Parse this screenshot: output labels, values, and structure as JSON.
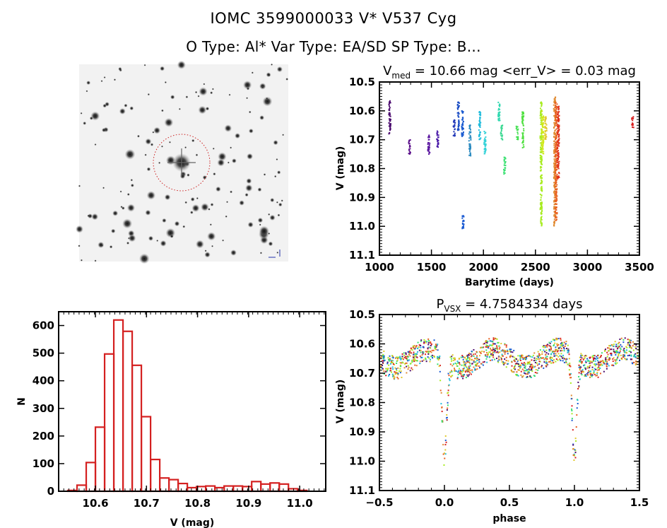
{
  "header": {
    "line1": "IOMC 3599000033    V* V537 Cyg",
    "line2": "O Type: Al*   Var Type: EA/SD   SP Type: B..."
  },
  "sky_image": {
    "description": "DSS finder chart star field",
    "target_marker": "red dotted circle around target star",
    "marker_color": "#cc2222"
  },
  "chart_data": [
    {
      "id": "lightcurve",
      "type": "scatter",
      "title_main": "V",
      "title_sub": "med",
      "title_rest": " = 10.66 mag <err_V> = 0.03 mag",
      "xlabel": "Barytime (days)",
      "ylabel": "V (mag)",
      "xlim": [
        1000,
        3500
      ],
      "ylim": [
        11.1,
        10.5
      ],
      "y_inverted": true,
      "xticks": [
        1000,
        1500,
        2000,
        2500,
        3000,
        3500
      ],
      "yticks": [
        10.5,
        10.6,
        10.7,
        10.8,
        10.9,
        11.0,
        11.1
      ],
      "ytick_labels": [
        "10.5",
        "10.6",
        "10.7",
        "10.8",
        "10.9",
        "11.0",
        "11.1"
      ],
      "color_scale": "time-ordered rainbow (purple → blue → cyan → green → yellow → orange → red)",
      "groups": [
        {
          "x": 1100,
          "ymin": 10.56,
          "ymax": 10.68,
          "color": "#4b0a6e"
        },
        {
          "x": 1290,
          "ymin": 10.7,
          "ymax": 10.75,
          "color": "#5a0e8a"
        },
        {
          "x": 1475,
          "ymin": 10.68,
          "ymax": 10.75,
          "color": "#5b17a0"
        },
        {
          "x": 1560,
          "ymin": 10.67,
          "ymax": 10.73,
          "color": "#4a1aa8"
        },
        {
          "x": 1720,
          "ymin": 10.63,
          "ymax": 10.69,
          "color": "#2238b8"
        },
        {
          "x": 1760,
          "ymin": 10.57,
          "ymax": 10.67,
          "color": "#1a4cc4"
        },
        {
          "x": 1800,
          "ymin": 10.6,
          "ymax": 10.69,
          "color": "#1b5bd0"
        },
        {
          "x": 1805,
          "ymin": 10.96,
          "ymax": 11.01,
          "color": "#1a5ad2"
        },
        {
          "x": 1870,
          "ymin": 10.65,
          "ymax": 10.76,
          "color": "#2a8ac0"
        },
        {
          "x": 1965,
          "ymin": 10.6,
          "ymax": 10.7,
          "color": "#22bcdc"
        },
        {
          "x": 2015,
          "ymin": 10.67,
          "ymax": 10.75,
          "color": "#35d2d8"
        },
        {
          "x": 2150,
          "ymin": 10.57,
          "ymax": 10.64,
          "color": "#30d8b0"
        },
        {
          "x": 2175,
          "ymin": 10.65,
          "ymax": 10.7,
          "color": "#38d890"
        },
        {
          "x": 2205,
          "ymin": 10.76,
          "ymax": 10.82,
          "color": "#38e070"
        },
        {
          "x": 2325,
          "ymin": 10.65,
          "ymax": 10.7,
          "color": "#44e052"
        },
        {
          "x": 2380,
          "ymin": 10.6,
          "ymax": 10.73,
          "color": "#50e040"
        },
        {
          "x": 2555,
          "ymin": 10.57,
          "ymax": 11.0,
          "color": "#a8ec20"
        },
        {
          "x": 2570,
          "ymin": 10.6,
          "ymax": 10.75,
          "color": "#d0e818"
        },
        {
          "x": 2600,
          "ymin": 10.62,
          "ymax": 10.7,
          "color": "#e0c828"
        },
        {
          "x": 2685,
          "ymin": 10.55,
          "ymax": 11.0,
          "color": "#e08a30"
        },
        {
          "x": 2700,
          "ymin": 10.57,
          "ymax": 10.98,
          "color": "#e86020"
        },
        {
          "x": 2720,
          "ymin": 10.58,
          "ymax": 10.84,
          "color": "#e03018"
        },
        {
          "x": 3435,
          "ymin": 10.62,
          "ymax": 10.66,
          "color": "#d82020"
        }
      ]
    },
    {
      "id": "histogram",
      "type": "bar",
      "title": "",
      "xlabel": "V (mag)",
      "ylabel": "N",
      "xlim": [
        10.528,
        11.051
      ],
      "ylim": [
        0,
        650
      ],
      "xticks": [
        10.6,
        10.7,
        10.8,
        10.9,
        11.0
      ],
      "xtick_labels": [
        "10.6",
        "10.7",
        "10.8",
        "10.9",
        "11.0"
      ],
      "yticks": [
        0,
        100,
        200,
        300,
        400,
        500,
        600
      ],
      "ytick_labels": [
        "0",
        "100",
        "200",
        "300",
        "400",
        "500",
        "600"
      ],
      "bin_start": 10.546,
      "bin_width": 0.018,
      "values": [
        3,
        22,
        104,
        232,
        497,
        620,
        579,
        456,
        270,
        115,
        48,
        42,
        28,
        13,
        17,
        19,
        13,
        19,
        19,
        17,
        35,
        26,
        30,
        26,
        9,
        3
      ],
      "bar_color": "#d42020"
    },
    {
      "id": "phased",
      "type": "scatter",
      "title_main": "P",
      "title_sub": "VSX",
      "title_rest": " = 4.7584334 days",
      "xlabel": "phase",
      "ylabel": "V (mag)",
      "xlim": [
        -0.5,
        1.5
      ],
      "ylim": [
        11.1,
        10.5
      ],
      "y_inverted": true,
      "xticks": [
        -0.5,
        0.0,
        0.5,
        1.0,
        1.5
      ],
      "xtick_labels": [
        "−0.5",
        "0.0",
        "0.5",
        "1.0",
        "1.5"
      ],
      "yticks": [
        10.5,
        10.6,
        10.7,
        10.8,
        10.9,
        11.0,
        11.1
      ],
      "ytick_labels": [
        "10.5",
        "10.6",
        "10.7",
        "10.8",
        "10.9",
        "11.0",
        "11.1"
      ],
      "period_days": 4.7584334,
      "primary_eclipse": {
        "phase": 0.0,
        "depth_mag": 11.01
      },
      "out_of_eclipse_level": 10.65,
      "palette": [
        "#4b0a6e",
        "#1a5ad2",
        "#22bcdc",
        "#38e070",
        "#a8ec20",
        "#e0c828",
        "#e08a30",
        "#e86020",
        "#d82020"
      ]
    }
  ]
}
